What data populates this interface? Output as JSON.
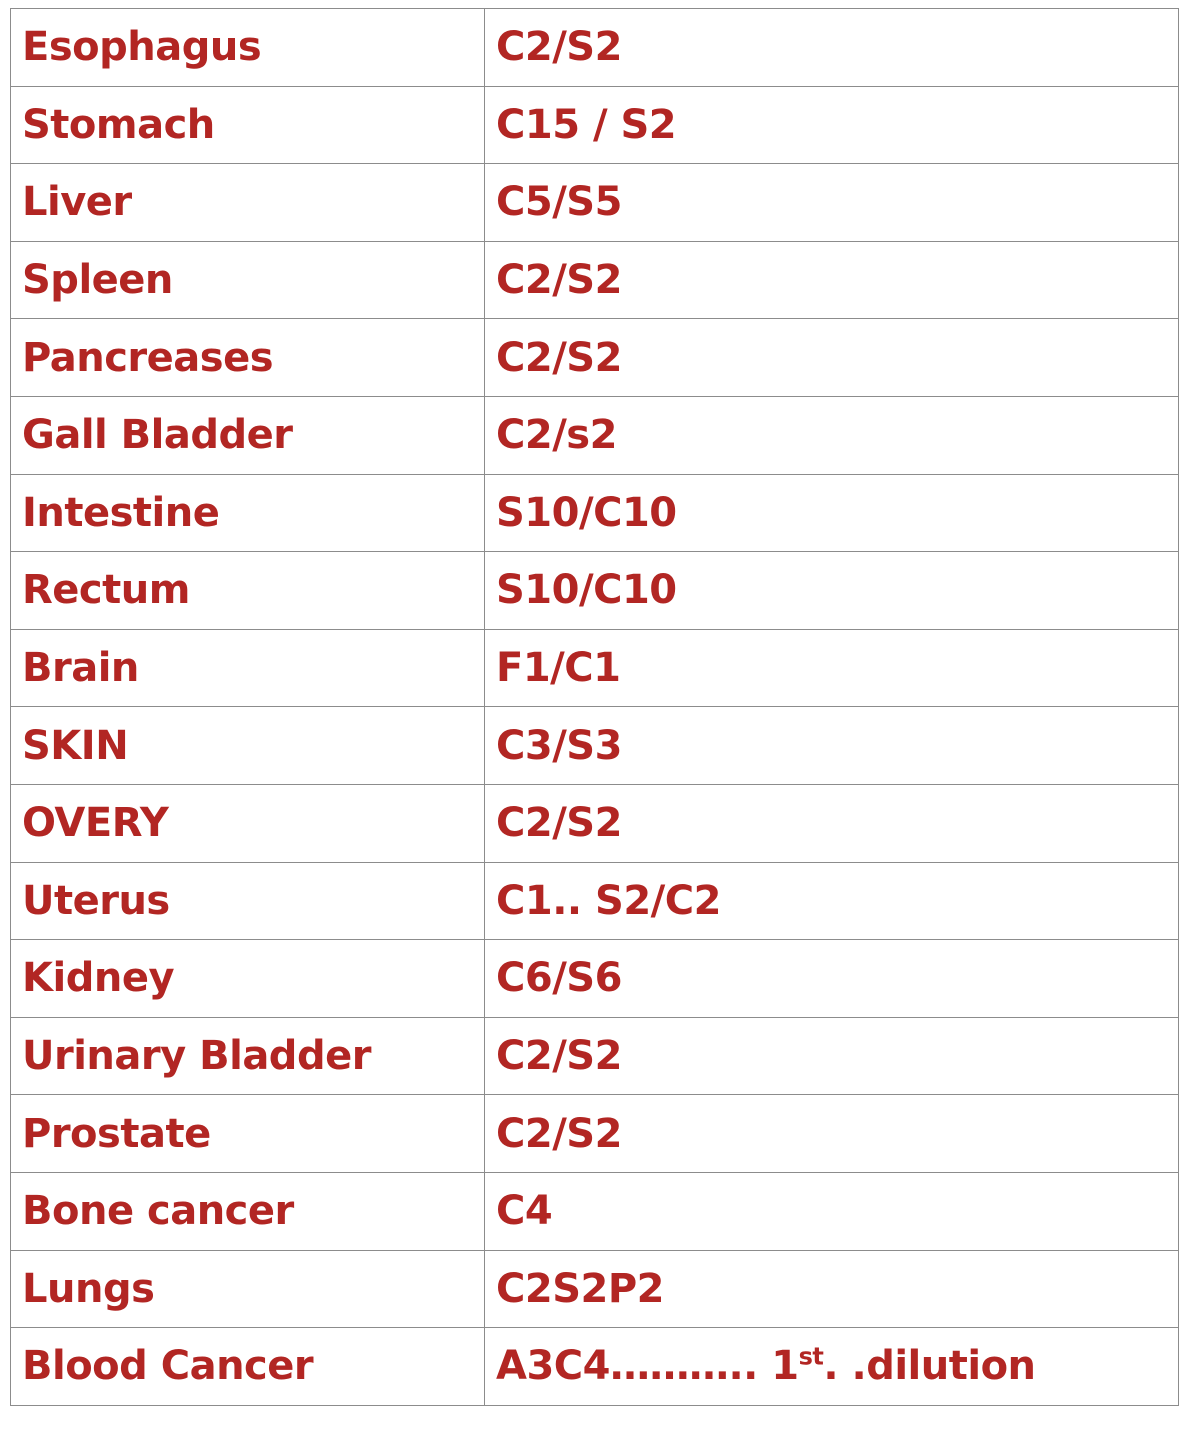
{
  "colors": {
    "text": "#b22623",
    "border": "#8c8c8c",
    "background": "#ffffff"
  },
  "rows": [
    {
      "organ": "Esophagus",
      "remedy": "C2/S2"
    },
    {
      "organ": "Stomach",
      "remedy": "C15 / S2"
    },
    {
      "organ": "Liver",
      "remedy": "C5/S5"
    },
    {
      "organ": "Spleen",
      "remedy": "C2/S2"
    },
    {
      "organ": "Pancreases",
      "remedy": "C2/S2"
    },
    {
      "organ": "Gall Bladder",
      "remedy": "C2/s2"
    },
    {
      "organ": "Intestine",
      "remedy": "S10/C10"
    },
    {
      "organ": "Rectum",
      "remedy": "S10/C10"
    },
    {
      "organ": "Brain",
      "remedy": "F1/C1"
    },
    {
      "organ": "SKIN",
      "remedy": "C3/S3"
    },
    {
      "organ": "OVERY",
      "remedy": "C2/S2"
    },
    {
      "organ": "Uterus",
      "remedy": "C1.. S2/C2"
    },
    {
      "organ": "Kidney",
      "remedy": "C6/S6"
    },
    {
      "organ": "Urinary Bladder",
      "remedy": "C2/S2"
    },
    {
      "organ": "Prostate",
      "remedy": "C2/S2"
    },
    {
      "organ": "Bone cancer",
      "remedy": "C4"
    },
    {
      "organ": "Lungs",
      "remedy": "C2S2P2"
    },
    {
      "organ": "Blood Cancer",
      "remedy": "",
      "remedy_parts": {
        "prefix": "A3C4……….. 1",
        "superscript": "st",
        "suffix": ". .dilution"
      }
    }
  ]
}
